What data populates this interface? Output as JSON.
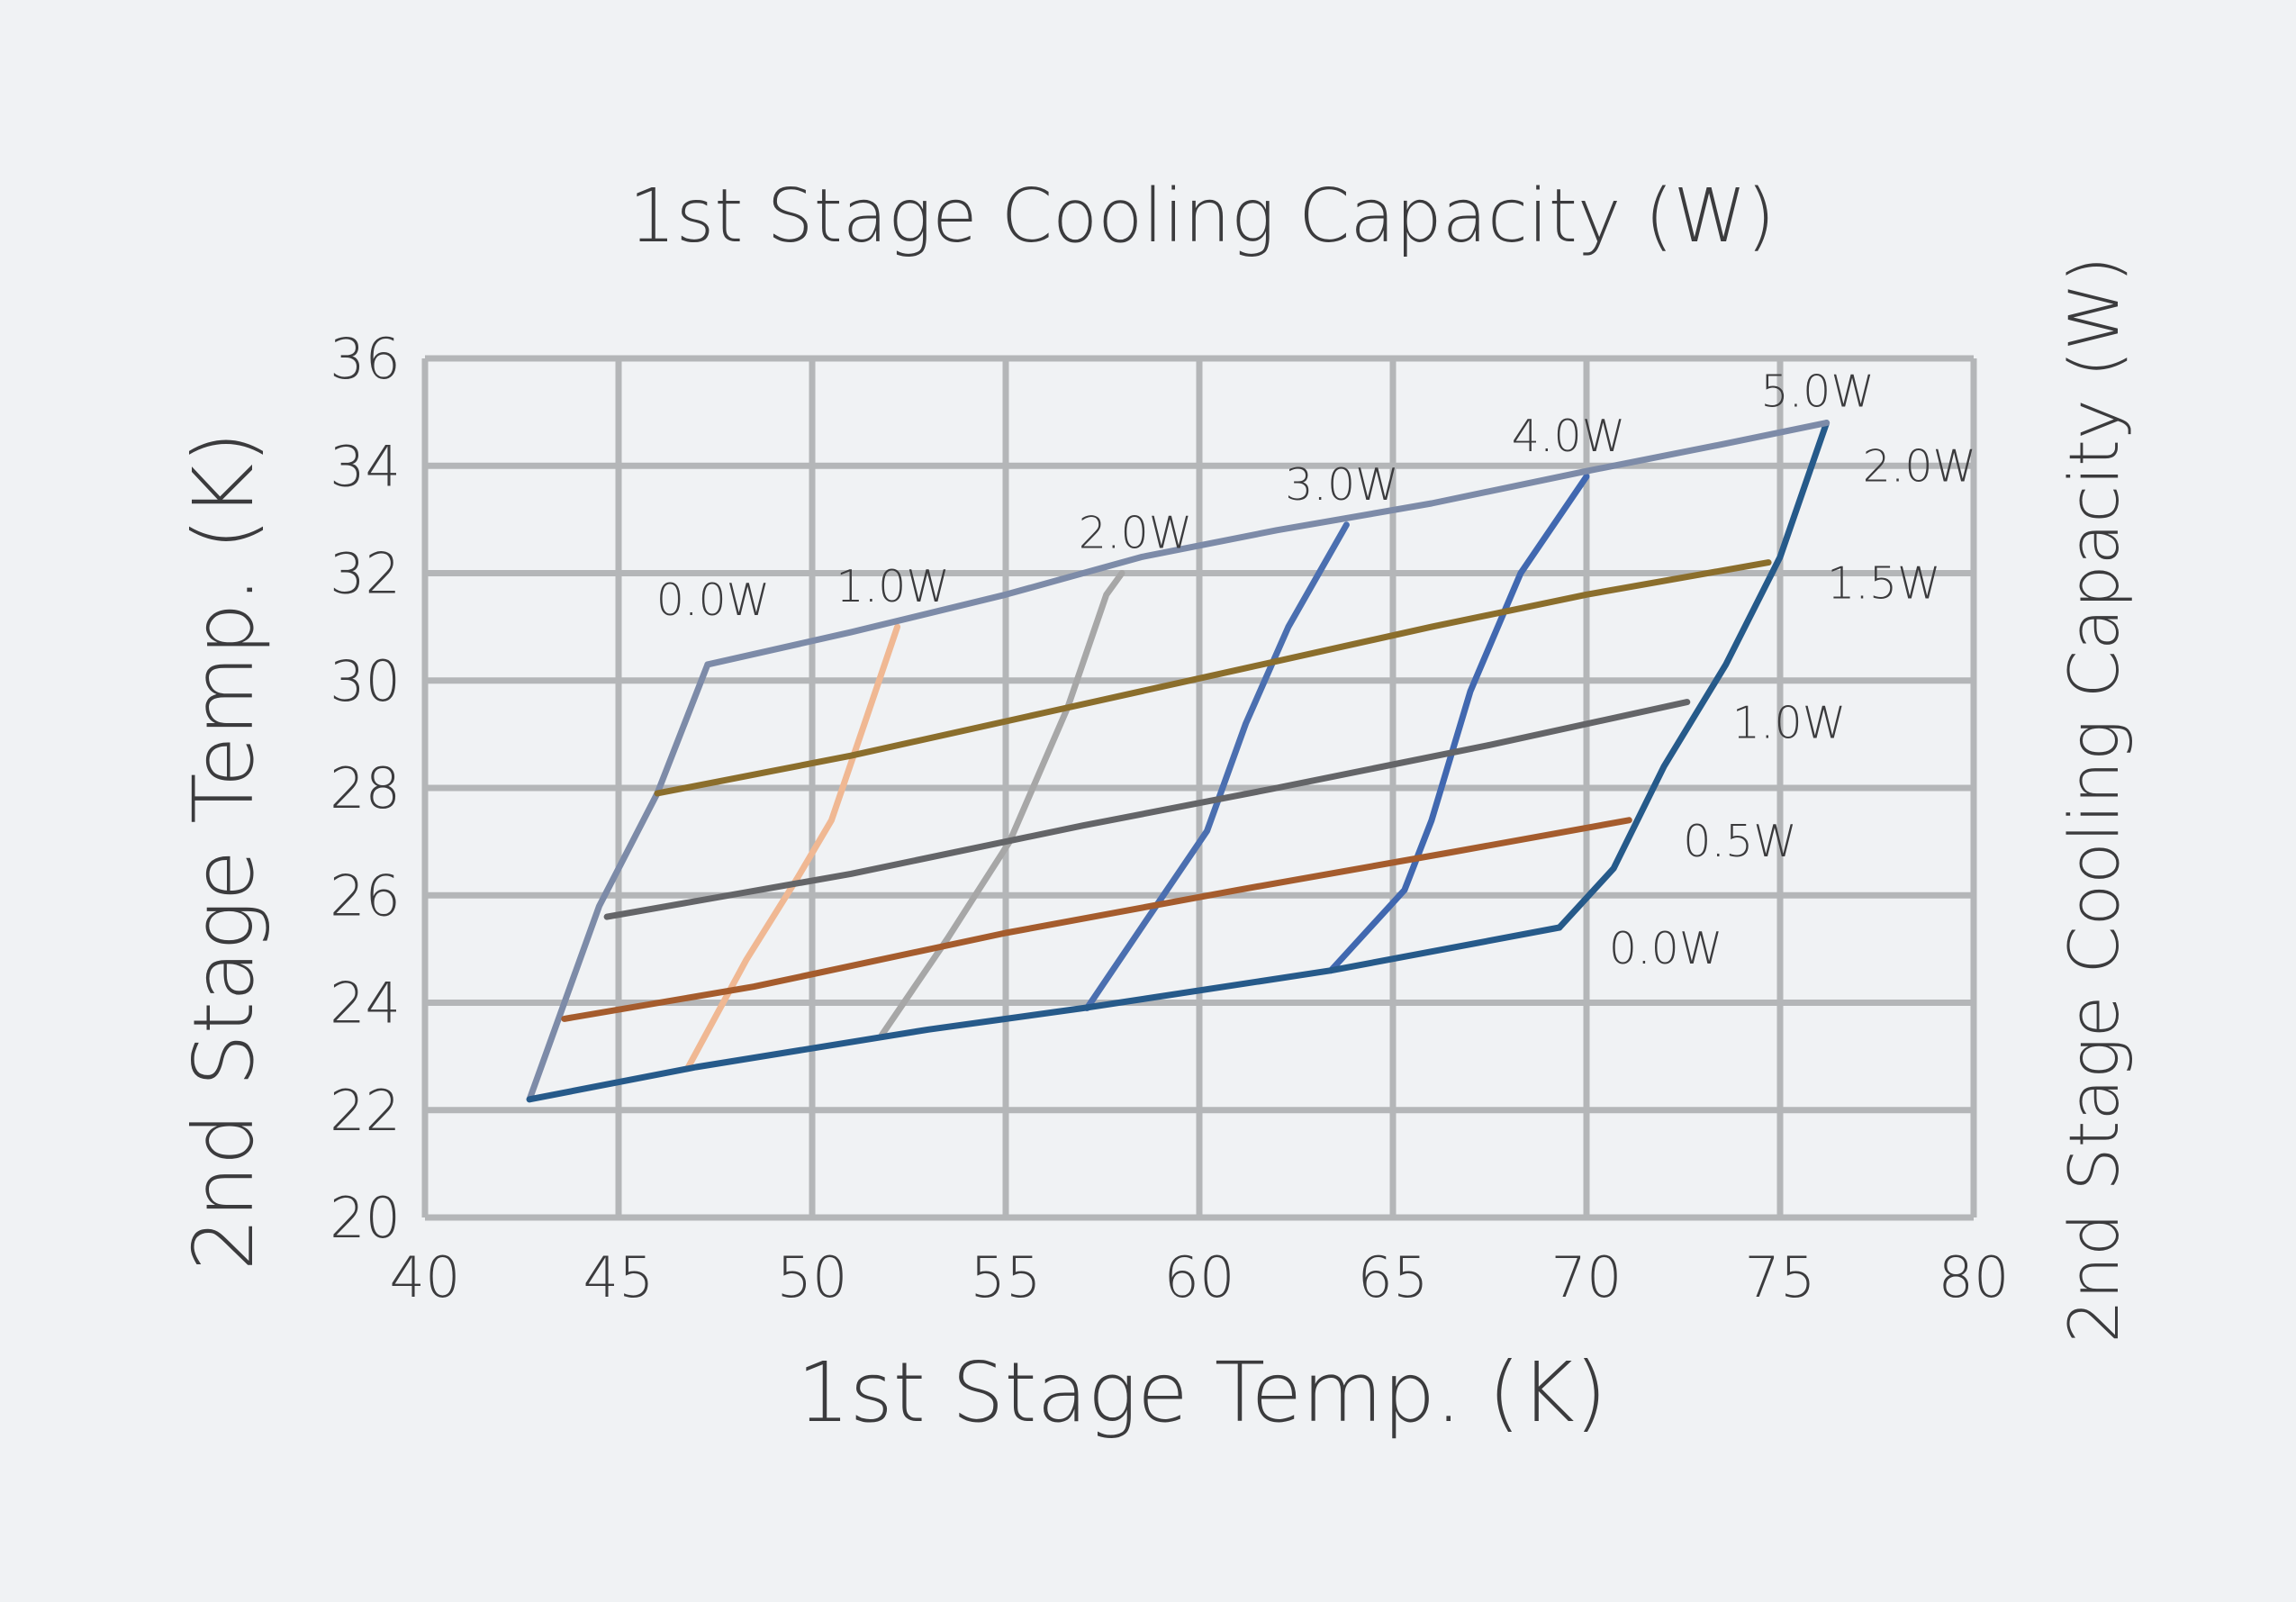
{
  "chart_data": {
    "type": "line",
    "title": "1st Stage Cooling Capacity (W)",
    "xlabel": "1st Stage Temp. (K)",
    "ylabel": "2nd Stage  Temp. (K)",
    "ylabel_right": "2nd Stage Cooling Capacity (W)",
    "xlim": [
      40,
      80
    ],
    "ylim": [
      20,
      36
    ],
    "xticks": [
      "40",
      "45",
      "50",
      "55",
      "60",
      "65",
      "70",
      "75",
      "80"
    ],
    "yticks": [
      "20",
      "22",
      "24",
      "26",
      "28",
      "30",
      "32",
      "34",
      "36"
    ],
    "grid": true,
    "first_stage_series": [
      {
        "name": "0.0W",
        "color": "#7d8ba8",
        "points": [
          [
            42.7,
            22.2
          ],
          [
            44.5,
            25.8
          ],
          [
            46,
            27.9
          ],
          [
            47.3,
            30.3
          ]
        ]
      },
      {
        "name": "1.0W",
        "color": "#f0b893",
        "points": [
          [
            46.8,
            22.8
          ],
          [
            48.3,
            24.8
          ],
          [
            49.6,
            26.3
          ],
          [
            50.5,
            27.4
          ],
          [
            51.4,
            29.3
          ],
          [
            52.2,
            31.0
          ]
        ]
      },
      {
        "name": "2.0W",
        "color": "#a7a7a7",
        "points": [
          [
            51.8,
            23.4
          ],
          [
            53.5,
            25.2
          ],
          [
            55.1,
            27.0
          ],
          [
            56.6,
            29.5
          ],
          [
            57.6,
            31.6
          ],
          [
            58.0,
            32.0
          ]
        ]
      },
      {
        "name": "3.0W",
        "color": "#4b6fb0",
        "points": [
          [
            57.1,
            23.9
          ],
          [
            58.6,
            25.5
          ],
          [
            60.2,
            27.2
          ],
          [
            61.2,
            29.2
          ],
          [
            62.3,
            31.0
          ],
          [
            63.8,
            32.9
          ]
        ]
      },
      {
        "name": "4.0W",
        "color": "#4168b0",
        "points": [
          [
            63.4,
            24.6
          ],
          [
            65.3,
            26.1
          ],
          [
            66.0,
            27.4
          ],
          [
            67.0,
            29.8
          ],
          [
            68.3,
            32.0
          ],
          [
            70.0,
            33.8
          ]
        ]
      },
      {
        "name": "5.0W",
        "color": "#265a8a",
        "points": [
          [
            69.3,
            25.4
          ],
          [
            70.7,
            26.5
          ],
          [
            72.0,
            28.4
          ],
          [
            73.6,
            30.3
          ],
          [
            75.0,
            32.3
          ],
          [
            76.2,
            34.8
          ]
        ]
      }
    ],
    "second_stage_series": [
      {
        "name": "0.0W",
        "color": "#265a8a",
        "points": [
          [
            42.7,
            22.2
          ],
          [
            47,
            22.8
          ],
          [
            53,
            23.5
          ],
          [
            57,
            23.9
          ],
          [
            63.4,
            24.6
          ],
          [
            69.3,
            25.4
          ]
        ]
      },
      {
        "name": "0.5W",
        "color": "#a55c2d",
        "points": [
          [
            43.6,
            23.7
          ],
          [
            48.5,
            24.3
          ],
          [
            55,
            25.3
          ],
          [
            61,
            26.1
          ],
          [
            66.5,
            26.8
          ],
          [
            71.1,
            27.4
          ]
        ]
      },
      {
        "name": "1.0W",
        "color": "#646568",
        "points": [
          [
            44.7,
            25.6
          ],
          [
            51,
            26.4
          ],
          [
            57,
            27.3
          ],
          [
            62,
            28.0
          ],
          [
            67.5,
            28.8
          ],
          [
            72.6,
            29.6
          ]
        ]
      },
      {
        "name": "1.5W",
        "color": "#8b6e2c",
        "points": [
          [
            46.0,
            27.9
          ],
          [
            51,
            28.6
          ],
          [
            56,
            29.4
          ],
          [
            61,
            30.2
          ],
          [
            66,
            31.0
          ],
          [
            70,
            31.6
          ],
          [
            74.7,
            32.2
          ]
        ]
      },
      {
        "name": "2.0W",
        "color": "#7d8ba8",
        "points": [
          [
            47.3,
            30.3
          ],
          [
            51,
            30.9
          ],
          [
            55,
            31.6
          ],
          [
            58.5,
            32.3
          ],
          [
            62,
            32.8
          ],
          [
            66,
            33.3
          ],
          [
            70,
            33.9
          ],
          [
            73.5,
            34.4
          ],
          [
            76.2,
            34.8
          ]
        ]
      }
    ]
  }
}
